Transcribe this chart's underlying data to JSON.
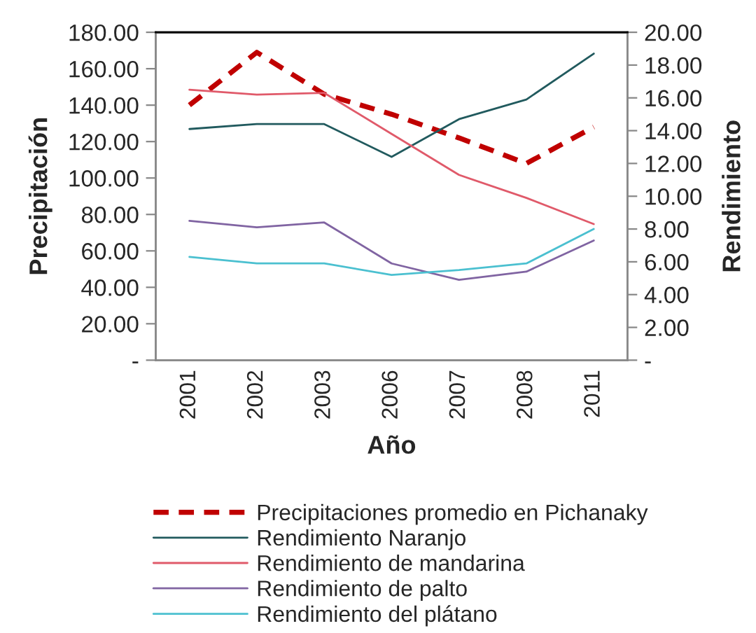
{
  "chart_data": {
    "type": "line",
    "xlabel": "Año",
    "ylabel": "Precipitación",
    "y2label": "Rendimiento",
    "categories": [
      "2001",
      "2002",
      "2003",
      "2006",
      "2007",
      "2008",
      "2011"
    ],
    "series": [
      {
        "name": "Precipitaciones promedio en Pichanaky",
        "color": "#c00000",
        "line_style": "dashed",
        "values": [
          140,
          169,
          146,
          135,
          122,
          108,
          128
        ]
      },
      {
        "name": "Rendimiento Naranjo",
        "color": "#215a5e",
        "axis": "y2",
        "values": [
          14.1,
          14.4,
          14.4,
          12.4,
          14.7,
          15.9,
          18.7
        ]
      },
      {
        "name": "Rendimiento de mandarina",
        "color": "#e05a6a",
        "axis": "y2",
        "values": [
          16.5,
          16.2,
          16.3,
          13.8,
          11.3,
          9.9,
          8.3
        ]
      },
      {
        "name": "Rendimiento de palto",
        "color": "#8064a2",
        "axis": "y2",
        "values": [
          8.5,
          8.1,
          8.4,
          5.9,
          4.9,
          5.4,
          7.3
        ]
      },
      {
        "name": "Rendimiento del plátano",
        "color": "#4bc0d0",
        "axis": "y2",
        "values": [
          6.3,
          5.9,
          5.9,
          5.2,
          5.5,
          5.9,
          8.0
        ]
      }
    ],
    "ylim": [
      0,
      180
    ],
    "yticks": [
      {
        "value": 0,
        "label": "-"
      },
      {
        "value": 20,
        "label": "20.00"
      },
      {
        "value": 40,
        "label": "40.00"
      },
      {
        "value": 60,
        "label": "60.00"
      },
      {
        "value": 80,
        "label": "80.00"
      },
      {
        "value": 100,
        "label": "100.00"
      },
      {
        "value": 120,
        "label": "120.00"
      },
      {
        "value": 140,
        "label": "140.00"
      },
      {
        "value": 160,
        "label": "160.00"
      },
      {
        "value": 180,
        "label": "180.00"
      }
    ],
    "y2lim": [
      0,
      20
    ],
    "y2ticks": [
      {
        "value": 0,
        "label": "-"
      },
      {
        "value": 2,
        "label": "2.00"
      },
      {
        "value": 4,
        "label": "4.00"
      },
      {
        "value": 6,
        "label": "6.00"
      },
      {
        "value": 8,
        "label": "8.00"
      },
      {
        "value": 10,
        "label": "10.00"
      },
      {
        "value": 12,
        "label": "12.00"
      },
      {
        "value": 14,
        "label": "14.00"
      },
      {
        "value": 16,
        "label": "16.00"
      },
      {
        "value": 18,
        "label": "18.00"
      },
      {
        "value": 20,
        "label": "20.00"
      }
    ],
    "legend": "bottom",
    "grid": false,
    "marker": "none"
  }
}
